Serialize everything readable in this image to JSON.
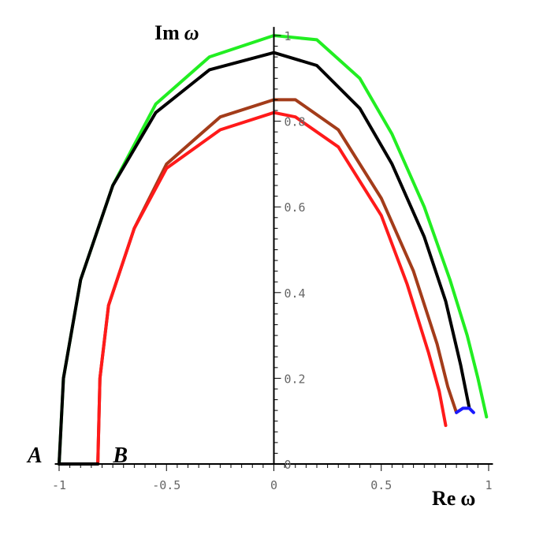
{
  "chart_data": {
    "type": "line",
    "title": "",
    "xlabel": {
      "main": "Re",
      "symbol": "ω"
    },
    "ylabel": {
      "main": "Im",
      "symbol": "ω"
    },
    "xlim": [
      -1.02,
      1.02
    ],
    "ylim": [
      0,
      1.02
    ],
    "grid": false,
    "legend": "none",
    "x_ticks": [
      {
        "value": -1,
        "label": "-1"
      },
      {
        "value": -0.5,
        "label": "-0.5"
      },
      {
        "value": 0,
        "label": "0"
      },
      {
        "value": 0.5,
        "label": "0.5"
      },
      {
        "value": 1,
        "label": "1"
      }
    ],
    "y_ticks": [
      {
        "value": 0,
        "label": "0"
      },
      {
        "value": 0.2,
        "label": "0.2"
      },
      {
        "value": 0.4,
        "label": "0.4"
      },
      {
        "value": 0.6,
        "label": "0.6"
      },
      {
        "value": 0.8,
        "label": "0.8"
      },
      {
        "value": 1,
        "label": "1"
      }
    ],
    "point_labels": [
      {
        "text": "A",
        "x": -1.0,
        "y": 0
      },
      {
        "text": "B",
        "x": -0.83,
        "y": 0
      }
    ],
    "series": [
      {
        "color": "#22ee22",
        "points": [
          [
            -1.0,
            0.0
          ],
          [
            -0.98,
            0.2
          ],
          [
            -0.9,
            0.43
          ],
          [
            -0.75,
            0.65
          ],
          [
            -0.55,
            0.84
          ],
          [
            -0.3,
            0.95
          ],
          [
            0.0,
            1.0
          ],
          [
            0.2,
            0.99
          ],
          [
            0.4,
            0.9
          ],
          [
            0.55,
            0.77
          ],
          [
            0.7,
            0.6
          ],
          [
            0.82,
            0.43
          ],
          [
            0.9,
            0.3
          ],
          [
            0.95,
            0.2
          ],
          [
            0.99,
            0.11
          ]
        ]
      },
      {
        "color": "#000000",
        "points": [
          [
            -1.0,
            0.0
          ],
          [
            -0.98,
            0.2
          ],
          [
            -0.9,
            0.43
          ],
          [
            -0.75,
            0.65
          ],
          [
            -0.55,
            0.82
          ],
          [
            -0.3,
            0.92
          ],
          [
            0.0,
            0.96
          ],
          [
            0.2,
            0.93
          ],
          [
            0.4,
            0.83
          ],
          [
            0.55,
            0.7
          ],
          [
            0.7,
            0.53
          ],
          [
            0.8,
            0.38
          ],
          [
            0.87,
            0.23
          ],
          [
            0.91,
            0.13
          ]
        ]
      },
      {
        "color": "#a33c1a",
        "points": [
          [
            -0.82,
            0.0
          ],
          [
            -0.81,
            0.2
          ],
          [
            -0.77,
            0.37
          ],
          [
            -0.65,
            0.55
          ],
          [
            -0.5,
            0.7
          ],
          [
            -0.25,
            0.81
          ],
          [
            0.0,
            0.85
          ],
          [
            0.1,
            0.85
          ],
          [
            0.3,
            0.78
          ],
          [
            0.5,
            0.62
          ],
          [
            0.65,
            0.45
          ],
          [
            0.76,
            0.28
          ],
          [
            0.81,
            0.18
          ],
          [
            0.85,
            0.12
          ]
        ]
      },
      {
        "color": "#ff1a1a",
        "points": [
          [
            -0.82,
            0.0
          ],
          [
            -0.81,
            0.2
          ],
          [
            -0.77,
            0.37
          ],
          [
            -0.65,
            0.55
          ],
          [
            -0.5,
            0.69
          ],
          [
            -0.25,
            0.78
          ],
          [
            0.0,
            0.82
          ],
          [
            0.1,
            0.81
          ],
          [
            0.3,
            0.74
          ],
          [
            0.5,
            0.58
          ],
          [
            0.62,
            0.42
          ],
          [
            0.72,
            0.26
          ],
          [
            0.77,
            0.17
          ],
          [
            0.8,
            0.09
          ]
        ]
      },
      {
        "color": "#1a1aff",
        "points": [
          [
            0.85,
            0.12
          ],
          [
            0.88,
            0.13
          ],
          [
            0.91,
            0.13
          ],
          [
            0.93,
            0.12
          ]
        ]
      },
      {
        "color": "#000000",
        "points": [
          [
            -1.0,
            0.0
          ],
          [
            -0.82,
            0.0
          ]
        ]
      }
    ]
  }
}
